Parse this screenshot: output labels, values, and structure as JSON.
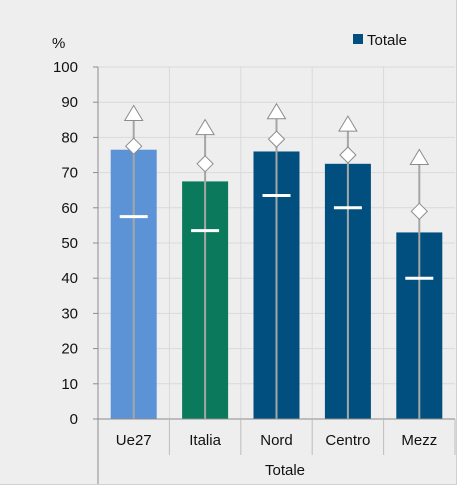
{
  "chart_data": {
    "type": "bar",
    "ylabel": "%",
    "xlabel": "Totale",
    "ylim": [
      0,
      100
    ],
    "yticks": [
      0,
      10,
      20,
      30,
      40,
      50,
      60,
      70,
      80,
      90,
      100
    ],
    "legend": {
      "label": "Totale",
      "color": "#004f7e",
      "placement": "top-right"
    },
    "categories": [
      "Ue27",
      "Italia",
      "Nord",
      "Centro",
      "Mezz"
    ],
    "bar_colors": [
      "#5b93d6",
      "#0b7a5c",
      "#004f7e",
      "#004f7e",
      "#004f7e"
    ],
    "values": [
      76.5,
      67.5,
      76,
      72.5,
      53
    ],
    "markers": {
      "white_line": [
        57.5,
        53.5,
        63.5,
        60,
        40
      ],
      "diamond": [
        77.5,
        72.5,
        79.5,
        75,
        59
      ],
      "triangle": [
        86.5,
        82.5,
        87,
        83.5,
        74
      ]
    },
    "grid": true
  }
}
